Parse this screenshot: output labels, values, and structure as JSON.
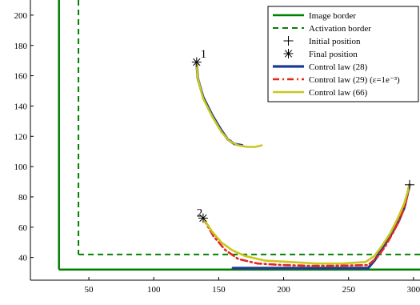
{
  "chart_data": {
    "type": "line",
    "title": "",
    "xlabel": "",
    "ylabel": "",
    "xlim": [
      5,
      305
    ],
    "ylim": [
      25,
      210
    ],
    "xticks": [
      50,
      100,
      150,
      200,
      250,
      300
    ],
    "yticks": [
      40,
      60,
      80,
      100,
      120,
      140,
      160,
      180,
      200
    ],
    "grid": false,
    "legend_position": "top-right",
    "legend": [
      {
        "key": "image_border",
        "label": "Image border"
      },
      {
        "key": "activation_border",
        "label": "Activation border"
      },
      {
        "key": "initial",
        "label": "Initial position"
      },
      {
        "key": "final",
        "label": "Final position"
      },
      {
        "key": "law28",
        "label": "Control law (28)"
      },
      {
        "key": "law29",
        "label": "Control law (29) (ε=1e⁻³)"
      },
      {
        "key": "law66",
        "label": "Control law (66)"
      }
    ],
    "colors": {
      "image_border": "#008000",
      "activation_border": "#008000",
      "law28": "#1f3a93",
      "law29": "#e8251f",
      "law66": "#c8c81e",
      "markers": "#000000"
    },
    "borders": {
      "image_border_x": 27,
      "image_border_y": 32,
      "activation_border_x": 42,
      "activation_border_y": 42
    },
    "annotations": [
      {
        "text": "1",
        "x": 136,
        "y": 172
      },
      {
        "text": "2",
        "x": 133,
        "y": 67
      }
    ],
    "initial_positions": [
      {
        "x": 297,
        "y": 88
      }
    ],
    "final_positions": [
      {
        "x": 133,
        "y": 169
      },
      {
        "x": 138,
        "y": 66
      }
    ],
    "series": [
      {
        "key": "law28",
        "name": "Control law (28)",
        "points": [
          [
            133,
            168
          ],
          [
            134,
            158
          ],
          [
            138,
            146
          ],
          [
            145,
            134
          ],
          [
            152,
            124
          ],
          [
            157,
            118
          ],
          [
            162,
            115
          ],
          [
            168,
            114
          ]
        ]
      },
      {
        "key": "law66",
        "name": "Control law (66)",
        "points": [
          [
            133,
            168
          ],
          [
            134,
            158
          ],
          [
            138,
            145
          ],
          [
            145,
            133
          ],
          [
            152,
            123
          ],
          [
            158,
            117
          ],
          [
            165,
            114
          ],
          [
            172,
            113
          ],
          [
            178,
            113
          ],
          [
            183,
            114
          ]
        ]
      },
      {
        "key": "law28",
        "name": "Control law (28)",
        "points": [
          [
            161,
            33
          ],
          [
            265,
            33
          ],
          [
            270,
            38
          ],
          [
            276,
            46
          ],
          [
            282,
            54
          ],
          [
            288,
            63
          ],
          [
            293,
            73
          ],
          [
            297,
            88
          ]
        ]
      },
      {
        "key": "law29",
        "name": "Control law (29) (ε=1e⁻³)",
        "points": [
          [
            138,
            66
          ],
          [
            146,
            54
          ],
          [
            155,
            45
          ],
          [
            165,
            39
          ],
          [
            180,
            36
          ],
          [
            200,
            35
          ],
          [
            220,
            34.5
          ],
          [
            240,
            34.5
          ],
          [
            265,
            35
          ],
          [
            272,
            40
          ],
          [
            278,
            47
          ],
          [
            284,
            56
          ],
          [
            290,
            66
          ],
          [
            294,
            76
          ],
          [
            297,
            88
          ]
        ]
      },
      {
        "key": "law66",
        "name": "Control law (66)",
        "points": [
          [
            138,
            66
          ],
          [
            145,
            57
          ],
          [
            152,
            50
          ],
          [
            160,
            45
          ],
          [
            170,
            41
          ],
          [
            185,
            38
          ],
          [
            205,
            37
          ],
          [
            225,
            36
          ],
          [
            245,
            36
          ],
          [
            263,
            37
          ],
          [
            270,
            41
          ],
          [
            276,
            48
          ],
          [
            282,
            56
          ],
          [
            288,
            66
          ],
          [
            293,
            76
          ],
          [
            297,
            88
          ]
        ]
      }
    ]
  }
}
